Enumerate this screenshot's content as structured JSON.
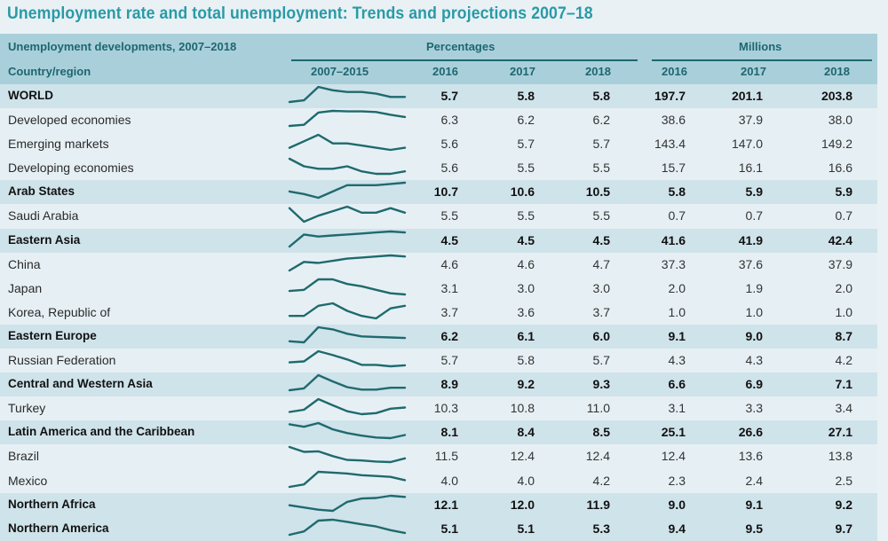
{
  "title": "Unemployment rate and total unemployment: Trends and projections 2007–18",
  "header": {
    "section_label": "Unemployment developments, 2007–2018",
    "region_label": "Country/region",
    "group_percentages": "Percentages",
    "group_millions": "Millions",
    "col_trend": "2007–2015",
    "pct_years": [
      "2016",
      "2017",
      "2018"
    ],
    "mil_years": [
      "2016",
      "2017",
      "2018"
    ]
  },
  "colors": {
    "title": "#2a9aa6",
    "header_bg": "#a9d0da",
    "header_text": "#1e6670",
    "bold_row_bg": "#cfe3ea",
    "plain_row_bg": "#e6f0f4",
    "sparkline": "#1f6a6e"
  },
  "rows": [
    {
      "name": "WORLD",
      "bold": true,
      "pct": [
        "5.7",
        "5.8",
        "5.8"
      ],
      "mil": [
        "197.7",
        "201.1",
        "203.8"
      ],
      "trend": [
        5.3,
        5.4,
        6.2,
        6.0,
        5.9,
        5.9,
        5.8,
        5.6,
        5.6
      ]
    },
    {
      "name": "Developed economies",
      "bold": false,
      "pct": [
        "6.3",
        "6.2",
        "6.2"
      ],
      "mil": [
        "38.6",
        "37.9",
        "38.0"
      ],
      "trend": [
        5.6,
        5.8,
        8.0,
        8.3,
        8.2,
        8.2,
        8.1,
        7.6,
        7.2
      ]
    },
    {
      "name": "Emerging markets",
      "bold": false,
      "pct": [
        "5.6",
        "5.7",
        "5.7"
      ],
      "mil": [
        "143.4",
        "147.0",
        "149.2"
      ],
      "trend": [
        5.4,
        5.7,
        6.0,
        5.6,
        5.6,
        5.5,
        5.4,
        5.3,
        5.4
      ]
    },
    {
      "name": "Developing economies",
      "bold": false,
      "pct": [
        "5.6",
        "5.5",
        "5.5"
      ],
      "mil": [
        "15.7",
        "16.1",
        "16.6"
      ],
      "trend": [
        6.2,
        5.9,
        5.8,
        5.8,
        5.9,
        5.7,
        5.6,
        5.6,
        5.7
      ]
    },
    {
      "name": "Arab States",
      "bold": true,
      "pct": [
        "10.7",
        "10.6",
        "10.5"
      ],
      "mil": [
        "5.8",
        "5.9",
        "5.9"
      ],
      "trend": [
        10.3,
        10.1,
        9.8,
        10.3,
        10.8,
        10.8,
        10.8,
        10.9,
        11.0
      ]
    },
    {
      "name": "Saudi Arabia",
      "bold": false,
      "pct": [
        "5.5",
        "5.5",
        "5.5"
      ],
      "mil": [
        "0.7",
        "0.7",
        "0.7"
      ],
      "trend": [
        5.9,
        5.0,
        5.4,
        5.7,
        6.0,
        5.6,
        5.6,
        5.9,
        5.6
      ]
    },
    {
      "name": "Eastern Asia",
      "bold": true,
      "pct": [
        "4.5",
        "4.5",
        "4.5"
      ],
      "mil": [
        "41.6",
        "41.9",
        "42.4"
      ],
      "trend": [
        3.9,
        4.5,
        4.4,
        4.45,
        4.5,
        4.55,
        4.6,
        4.65,
        4.6
      ]
    },
    {
      "name": "China",
      "bold": false,
      "pct": [
        "4.6",
        "4.6",
        "4.7"
      ],
      "mil": [
        "37.3",
        "37.6",
        "37.9"
      ],
      "trend": [
        4.0,
        4.4,
        4.35,
        4.45,
        4.55,
        4.6,
        4.65,
        4.7,
        4.65
      ]
    },
    {
      "name": "Japan",
      "bold": false,
      "pct": [
        "3.1",
        "3.0",
        "3.0"
      ],
      "mil": [
        "2.0",
        "1.9",
        "2.0"
      ],
      "trend": [
        3.8,
        3.9,
        4.8,
        4.8,
        4.4,
        4.2,
        3.9,
        3.6,
        3.5
      ]
    },
    {
      "name": "Korea, Republic of",
      "bold": false,
      "pct": [
        "3.7",
        "3.6",
        "3.7"
      ],
      "mil": [
        "1.0",
        "1.0",
        "1.0"
      ],
      "trend": [
        3.2,
        3.2,
        3.6,
        3.7,
        3.4,
        3.2,
        3.1,
        3.5,
        3.6
      ]
    },
    {
      "name": "Eastern Europe",
      "bold": true,
      "pct": [
        "6.2",
        "6.1",
        "6.0"
      ],
      "mil": [
        "9.1",
        "9.0",
        "8.7"
      ],
      "trend": [
        6.2,
        6.0,
        8.8,
        8.4,
        7.6,
        7.1,
        7.0,
        6.9,
        6.8
      ]
    },
    {
      "name": "Russian Federation",
      "bold": false,
      "pct": [
        "5.7",
        "5.8",
        "5.7"
      ],
      "mil": [
        "4.3",
        "4.3",
        "4.2"
      ],
      "trend": [
        6.0,
        6.2,
        8.3,
        7.5,
        6.6,
        5.5,
        5.5,
        5.2,
        5.4
      ]
    },
    {
      "name": "Central and Western Asia",
      "bold": true,
      "pct": [
        "8.9",
        "9.2",
        "9.3"
      ],
      "mil": [
        "6.6",
        "6.9",
        "7.1"
      ],
      "trend": [
        8.9,
        9.2,
        11.3,
        10.3,
        9.4,
        9.0,
        9.0,
        9.3,
        9.3
      ]
    },
    {
      "name": "Turkey",
      "bold": false,
      "pct": [
        "10.3",
        "10.8",
        "11.0"
      ],
      "mil": [
        "3.1",
        "3.3",
        "3.4"
      ],
      "trend": [
        9.0,
        9.6,
        12.5,
        10.8,
        9.2,
        8.4,
        8.7,
        9.9,
        10.2
      ]
    },
    {
      "name": "Latin America and the Caribbean",
      "bold": true,
      "pct": [
        "8.1",
        "8.4",
        "8.5"
      ],
      "mil": [
        "25.1",
        "26.6",
        "27.1"
      ],
      "trend": [
        8.4,
        8.0,
        8.6,
        7.6,
        7.0,
        6.6,
        6.3,
        6.2,
        6.7
      ]
    },
    {
      "name": "Brazil",
      "bold": false,
      "pct": [
        "11.5",
        "12.4",
        "12.4"
      ],
      "mil": [
        "12.4",
        "13.6",
        "13.8"
      ],
      "trend": [
        9.3,
        8.4,
        8.5,
        7.6,
        6.9,
        6.8,
        6.6,
        6.5,
        7.2
      ]
    },
    {
      "name": "Mexico",
      "bold": false,
      "pct": [
        "4.0",
        "4.0",
        "4.2"
      ],
      "mil": [
        "2.3",
        "2.4",
        "2.5"
      ],
      "trend": [
        3.6,
        3.9,
        5.4,
        5.3,
        5.2,
        5.0,
        4.9,
        4.8,
        4.4
      ]
    },
    {
      "name": "Northern Africa",
      "bold": true,
      "pct": [
        "12.1",
        "12.0",
        "11.9"
      ],
      "mil": [
        "9.0",
        "9.1",
        "9.2"
      ],
      "trend": [
        10.8,
        10.4,
        10.0,
        9.8,
        11.4,
        12.0,
        12.1,
        12.5,
        12.3
      ]
    },
    {
      "name": "Northern America",
      "bold": true,
      "pct": [
        "5.1",
        "5.1",
        "5.3"
      ],
      "mil": [
        "9.4",
        "9.5",
        "9.7"
      ],
      "trend": [
        4.7,
        5.8,
        9.3,
        9.6,
        8.9,
        8.1,
        7.4,
        6.2,
        5.3
      ]
    }
  ]
}
